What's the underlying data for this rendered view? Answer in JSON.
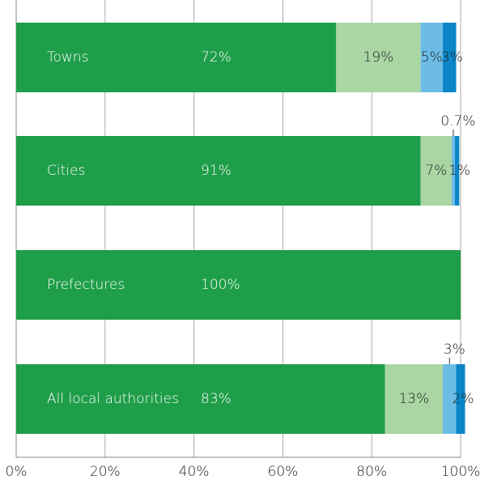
{
  "chart_data": {
    "type": "stacked_barh",
    "categories": [
      "Towns",
      "Cities",
      "Prefectures",
      "All local authorities"
    ],
    "series": [
      {
        "color": "#1f9e49",
        "values": [
          72,
          91,
          100,
          83
        ],
        "value_labels": [
          "72%",
          "91%",
          "100%",
          "83%"
        ]
      },
      {
        "color": "#a9d6a3",
        "values": [
          19,
          7,
          null,
          13
        ],
        "value_labels": [
          "19%",
          "7%",
          null,
          "13%"
        ]
      },
      {
        "color": "#6cbce6",
        "values": [
          5,
          0.7,
          null,
          3
        ],
        "value_labels": [
          "5%",
          "0.7%",
          null,
          "3%"
        ]
      },
      {
        "color": "#0a86c8",
        "values": [
          3,
          1,
          null,
          2
        ],
        "value_labels": [
          "3%",
          "1%",
          null,
          "2%"
        ]
      }
    ],
    "xlim": [
      0,
      100
    ],
    "xticks": [
      {
        "value": 0,
        "label": "0%"
      },
      {
        "value": 20,
        "label": "20%"
      },
      {
        "value": 40,
        "label": "40%"
      },
      {
        "value": 60,
        "label": "60%"
      },
      {
        "value": 80,
        "label": "80%"
      },
      {
        "value": 100,
        "label": "100%"
      }
    ],
    "grid": true
  }
}
